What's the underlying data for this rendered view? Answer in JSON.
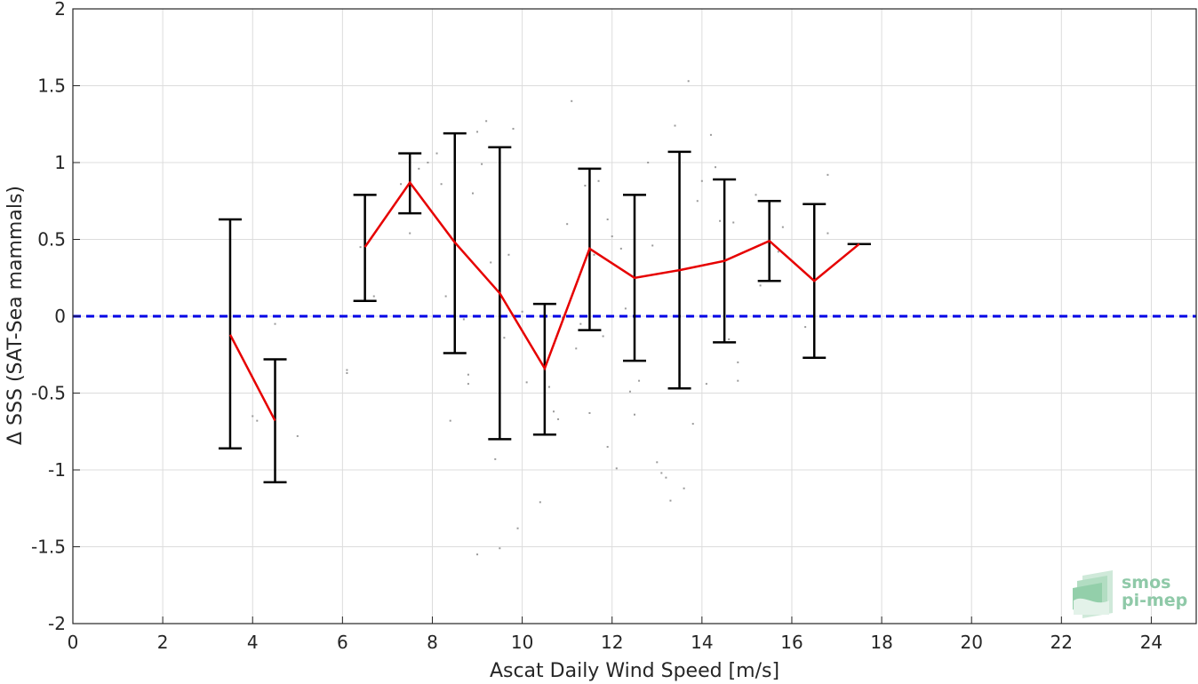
{
  "chart_data": {
    "type": "scatter",
    "title": "",
    "xlabel": "Ascat Daily Wind Speed [m/s]",
    "ylabel": "Δ SSS (SAT-Sea mammals)",
    "xlim": [
      0,
      25
    ],
    "ylim": [
      -2,
      2
    ],
    "xticks": [
      0,
      2,
      4,
      6,
      8,
      10,
      12,
      14,
      16,
      18,
      20,
      22,
      24
    ],
    "yticks": [
      2,
      1.5,
      1,
      0.5,
      0,
      -0.5,
      -1,
      -1.5,
      -2
    ],
    "grid": true,
    "reference_line": {
      "y": 0,
      "style": "dashed",
      "color": "#0000e6"
    },
    "series": [
      {
        "kind": "mean_with_errorbars",
        "color": "#e60000",
        "errorbar_color": "#000000",
        "x": [
          3.5,
          4.5,
          6.5,
          7.5,
          8.5,
          9.5,
          10.5,
          11.5,
          12.5,
          13.5,
          14.5,
          15.5,
          16.5,
          17.5
        ],
        "mean": [
          -0.12,
          -0.68,
          0.45,
          0.87,
          0.48,
          0.15,
          -0.34,
          0.44,
          0.25,
          0.3,
          0.36,
          0.49,
          0.23,
          0.47
        ],
        "upper": [
          0.63,
          -0.28,
          0.79,
          1.06,
          1.19,
          1.1,
          0.08,
          0.96,
          0.79,
          1.07,
          0.89,
          0.75,
          0.73,
          0.47
        ],
        "lower": [
          -0.86,
          -1.08,
          0.1,
          0.67,
          -0.24,
          -0.8,
          -0.77,
          -0.09,
          -0.29,
          -0.47,
          -0.17,
          0.23,
          -0.27,
          0.47
        ]
      },
      {
        "kind": "raw_points",
        "color": "#9a9a9a",
        "points": [
          [
            4.0,
            -0.65
          ],
          [
            4.1,
            -0.68
          ],
          [
            4.5,
            -0.05
          ],
          [
            5.0,
            -0.78
          ],
          [
            6.1,
            -0.35
          ],
          [
            6.1,
            -0.37
          ],
          [
            6.4,
            0.45
          ],
          [
            6.5,
            0.31
          ],
          [
            6.7,
            0.13
          ],
          [
            7.3,
            0.86
          ],
          [
            7.5,
            0.54
          ],
          [
            7.7,
            0.96
          ],
          [
            7.9,
            1.0
          ],
          [
            8.1,
            1.06
          ],
          [
            8.2,
            0.86
          ],
          [
            8.3,
            0.13
          ],
          [
            8.4,
            -0.68
          ],
          [
            8.7,
            -0.02
          ],
          [
            8.8,
            -0.38
          ],
          [
            8.8,
            -0.44
          ],
          [
            8.9,
            0.8
          ],
          [
            9.0,
            1.2
          ],
          [
            9.0,
            -1.55
          ],
          [
            9.1,
            0.99
          ],
          [
            9.2,
            1.27
          ],
          [
            9.3,
            0.35
          ],
          [
            9.4,
            -0.93
          ],
          [
            9.5,
            -1.51
          ],
          [
            9.6,
            -0.14
          ],
          [
            9.7,
            0.4
          ],
          [
            9.8,
            1.22
          ],
          [
            9.9,
            -1.38
          ],
          [
            10.0,
            0.03
          ],
          [
            10.1,
            -0.43
          ],
          [
            10.4,
            -1.21
          ],
          [
            10.6,
            -0.46
          ],
          [
            10.7,
            -0.62
          ],
          [
            10.8,
            -0.67
          ],
          [
            10.9,
            -0.01
          ],
          [
            11.0,
            0.6
          ],
          [
            11.1,
            1.4
          ],
          [
            11.2,
            -0.21
          ],
          [
            11.3,
            -0.05
          ],
          [
            11.4,
            0.85
          ],
          [
            11.5,
            -0.63
          ],
          [
            11.5,
            0.5
          ],
          [
            11.6,
            0.4
          ],
          [
            11.7,
            0.88
          ],
          [
            11.8,
            -0.13
          ],
          [
            11.9,
            0.63
          ],
          [
            11.9,
            -0.85
          ],
          [
            12.0,
            0.52
          ],
          [
            12.1,
            -0.99
          ],
          [
            12.2,
            0.44
          ],
          [
            12.3,
            0.05
          ],
          [
            12.4,
            -0.49
          ],
          [
            12.5,
            -0.64
          ],
          [
            12.6,
            -0.42
          ],
          [
            12.7,
            0.26
          ],
          [
            12.8,
            1.0
          ],
          [
            12.9,
            0.46
          ],
          [
            13.0,
            -0.95
          ],
          [
            13.1,
            -1.02
          ],
          [
            13.2,
            -1.05
          ],
          [
            13.3,
            -1.2
          ],
          [
            13.4,
            1.24
          ],
          [
            13.5,
            -0.38
          ],
          [
            13.6,
            -1.12
          ],
          [
            13.7,
            1.53
          ],
          [
            13.8,
            -0.7
          ],
          [
            13.9,
            0.75
          ],
          [
            14.0,
            0.88
          ],
          [
            14.1,
            -0.44
          ],
          [
            14.2,
            1.18
          ],
          [
            14.3,
            0.97
          ],
          [
            14.4,
            0.62
          ],
          [
            14.5,
            -0.12
          ],
          [
            14.6,
            -0.15
          ],
          [
            14.7,
            0.61
          ],
          [
            14.8,
            -0.3
          ],
          [
            14.8,
            -0.42
          ],
          [
            15.2,
            0.79
          ],
          [
            15.3,
            0.2
          ],
          [
            15.5,
            0.46
          ],
          [
            15.7,
            0.42
          ],
          [
            15.8,
            0.58
          ],
          [
            16.3,
            -0.07
          ],
          [
            16.5,
            -0.12
          ],
          [
            16.8,
            0.92
          ],
          [
            16.8,
            0.54
          ]
        ]
      }
    ],
    "logo": {
      "line1": "smos",
      "line2": "pi-mep"
    }
  }
}
